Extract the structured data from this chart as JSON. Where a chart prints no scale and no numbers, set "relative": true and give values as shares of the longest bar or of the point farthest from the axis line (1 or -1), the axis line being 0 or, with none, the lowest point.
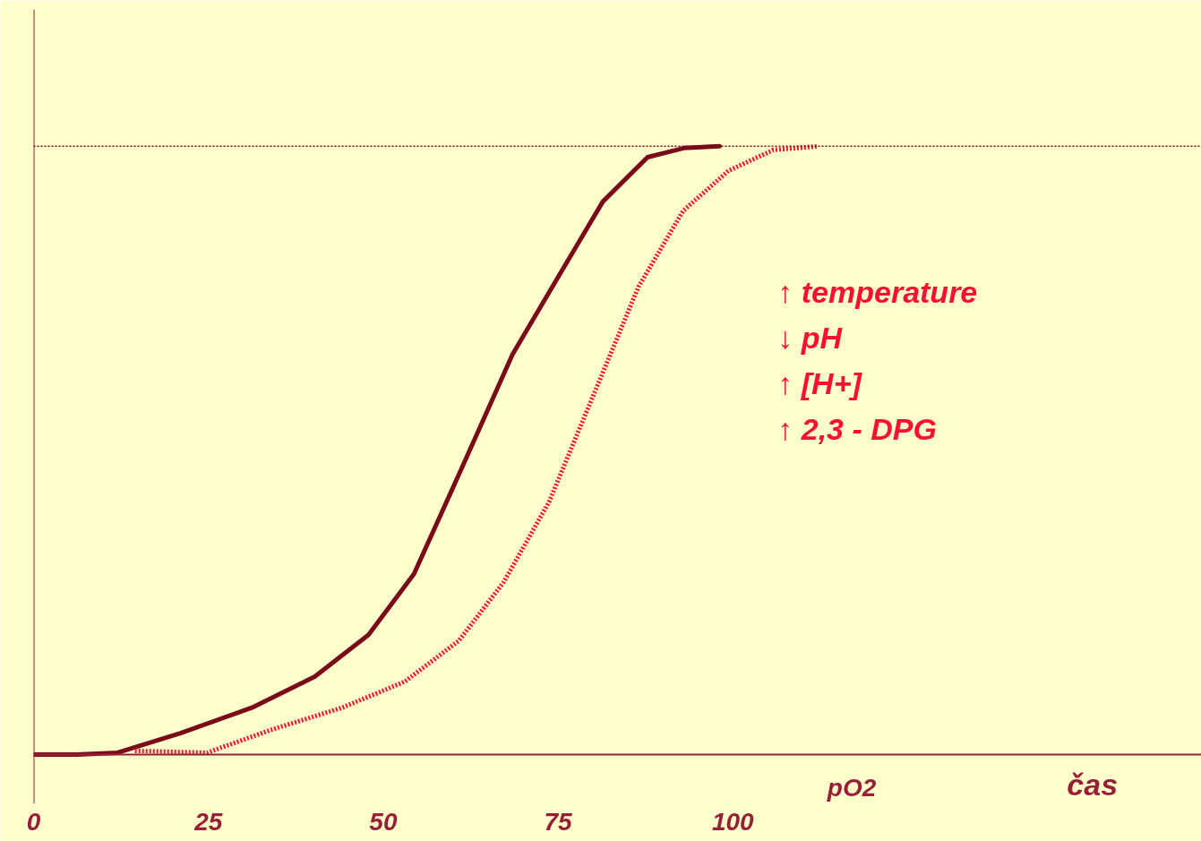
{
  "chart_data": {
    "type": "line",
    "relative": true,
    "xlabel": "pO2",
    "xlim": [
      0,
      167
    ],
    "xticks": [
      0,
      25,
      50,
      75,
      100
    ],
    "grid": false,
    "marker": "none",
    "x": [
      0,
      6.2,
      12,
      21,
      31.2,
      40.2,
      47.9,
      54.4,
      60.8,
      68.5,
      74.9,
      81.4,
      87.8,
      93,
      98.1
    ],
    "series": [
      {
        "color": "#7a0a1a",
        "line_style": "solid",
        "values": [
          0,
          0,
          0.003,
          0.035,
          0.077,
          0.128,
          0.197,
          0.297,
          0.46,
          0.658,
          0.783,
          0.909,
          0.982,
          0.997,
          1.0
        ]
      },
      {
        "color": "#ff1030",
        "line_style": "dotted",
        "x": [
          14.5,
          24.8,
          33.8,
          44.1,
          53.1,
          60.8,
          67.2,
          73.7,
          80.1,
          86.5,
          92.9,
          99.4,
          105.8,
          112.2
        ],
        "values": [
          0.006,
          0.003,
          0.04,
          0.077,
          0.12,
          0.187,
          0.283,
          0.415,
          0.592,
          0.769,
          0.894,
          0.96,
          0.994,
          1.0
        ]
      }
    ],
    "ref_lines": [
      {
        "axis": "y",
        "value": 1,
        "line_style": "dotted",
        "color": "#7a0a1a"
      }
    ],
    "annotations": [
      "čas",
      "↑ temperature",
      "↓ pH",
      "↑ [H+]",
      "↑ 2,3 - DPG"
    ]
  }
}
